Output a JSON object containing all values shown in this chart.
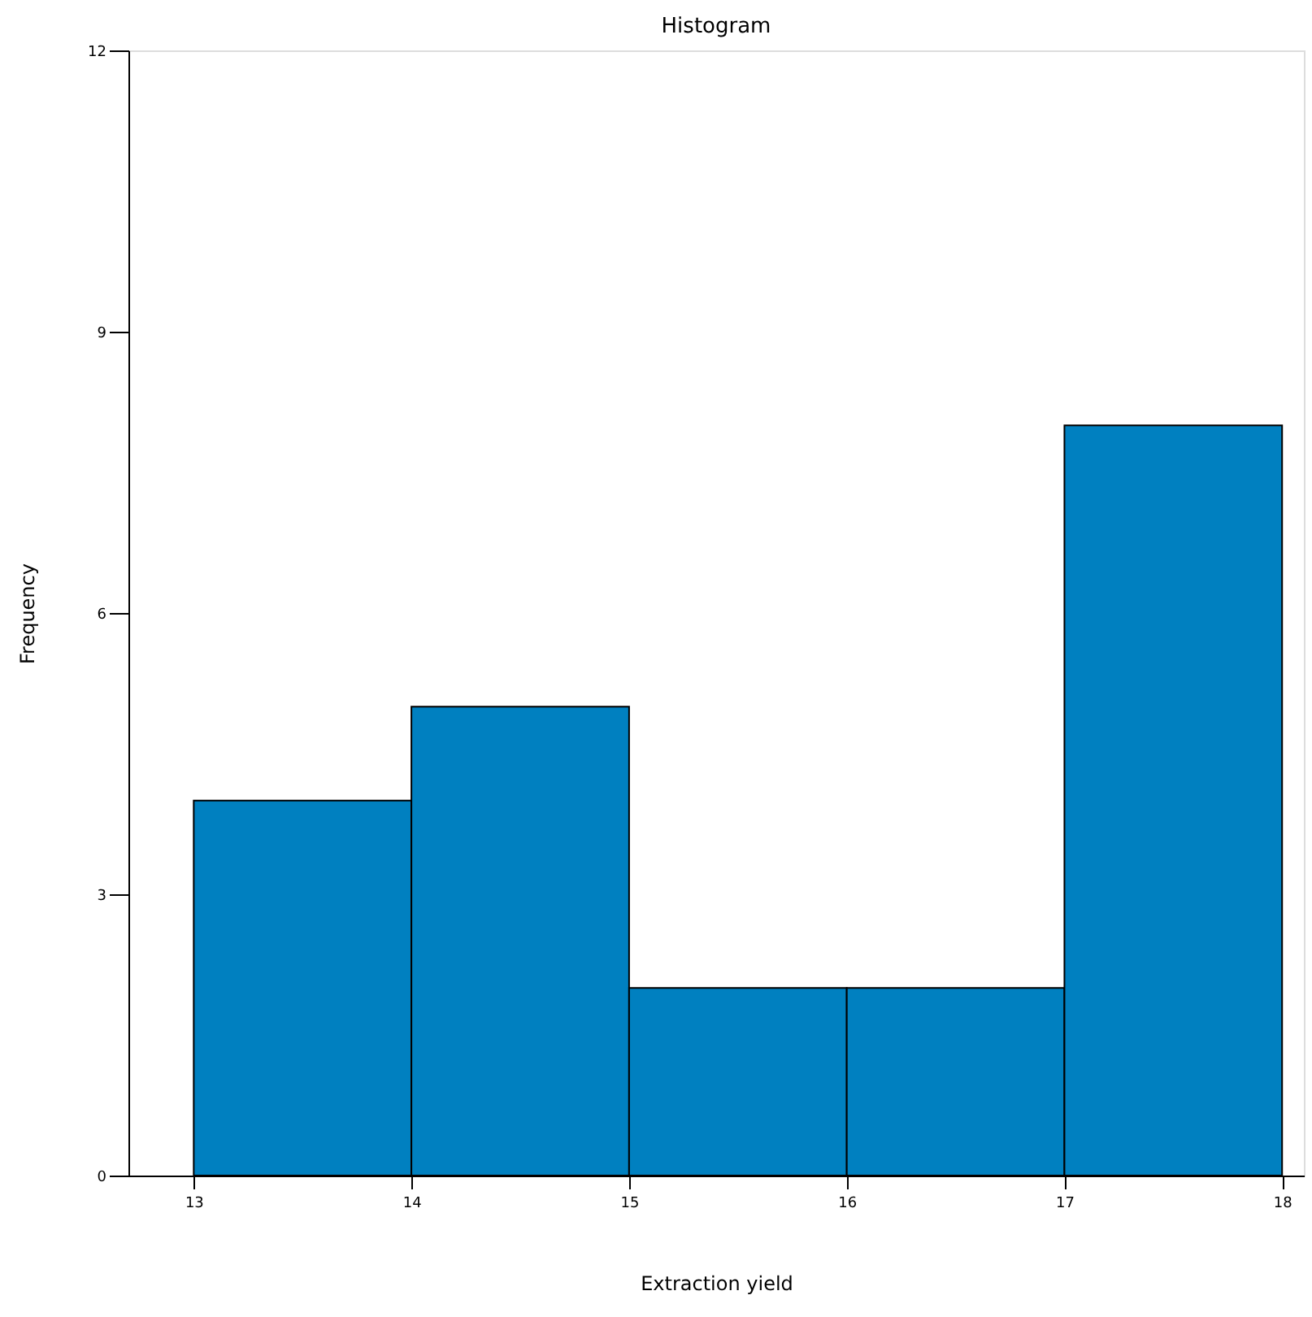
{
  "chart_data": {
    "type": "histogram",
    "title": "Histogram",
    "xlabel": "Extraction yield",
    "ylabel": "Frequency",
    "bins": [
      13,
      14,
      15,
      16,
      17,
      18
    ],
    "values": [
      4,
      5,
      2,
      2,
      8
    ],
    "color": "#0080c0",
    "xlim": [
      12.7,
      18.1
    ],
    "xticks": [
      13,
      14,
      15,
      16,
      17,
      18
    ],
    "ylim": [
      0,
      12
    ],
    "yticks": [
      0,
      3,
      6,
      9,
      12
    ],
    "grid": false
  }
}
